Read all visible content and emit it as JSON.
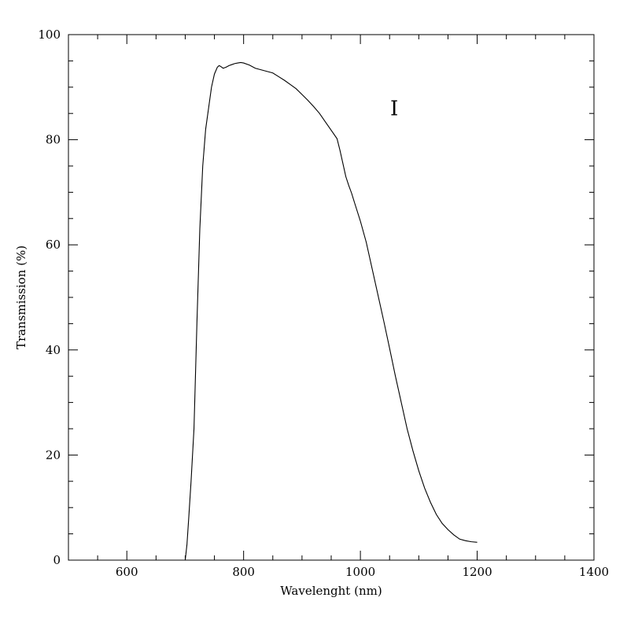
{
  "chart_data": {
    "type": "line",
    "title": "",
    "xlabel": "Wavelenght (nm)",
    "ylabel": "Transmission (%)",
    "xlim": [
      500,
      1400
    ],
    "ylim": [
      0,
      100
    ],
    "x_ticks": [
      600,
      800,
      1000,
      1200,
      1400
    ],
    "y_ticks": [
      0,
      20,
      40,
      60,
      80,
      100
    ],
    "x_tick_labels": [
      "600",
      "800",
      "1000",
      "1200",
      "1400"
    ],
    "y_tick_labels": [
      "0",
      "20",
      "40",
      "60",
      "80",
      "100"
    ],
    "x_minor_step": 50,
    "y_minor_step": 5,
    "grid": false,
    "annotations": [
      {
        "text": "I",
        "x": 1058,
        "y": 86
      }
    ],
    "series": [
      {
        "x": [
          700,
          703,
          706,
          710,
          715,
          720,
          725,
          730,
          735,
          740,
          745,
          750,
          755,
          758,
          760,
          765,
          770,
          775,
          780,
          785,
          790,
          795,
          800,
          810,
          820,
          830,
          840,
          850,
          860,
          870,
          880,
          890,
          900,
          910,
          920,
          930,
          940,
          950,
          960,
          965,
          970,
          975,
          980,
          985,
          990,
          1000,
          1010,
          1020,
          1030,
          1040,
          1050,
          1060,
          1070,
          1080,
          1090,
          1100,
          1110,
          1120,
          1130,
          1140,
          1150,
          1160,
          1170,
          1180,
          1190,
          1200
        ],
        "y": [
          0,
          3,
          8,
          15,
          25,
          45,
          63,
          75,
          82,
          86,
          90,
          92.5,
          93.8,
          94.1,
          94.0,
          93.6,
          93.8,
          94.1,
          94.3,
          94.5,
          94.6,
          94.7,
          94.6,
          94.2,
          93.6,
          93.3,
          93.0,
          92.7,
          92.0,
          91.3,
          90.5,
          89.7,
          88.6,
          87.5,
          86.3,
          85.0,
          83.4,
          81.8,
          80.2,
          78.0,
          75.5,
          73.0,
          71.3,
          69.8,
          68.0,
          64.5,
          60.5,
          55.5,
          50.5,
          45.5,
          40.3,
          35.0,
          30.0,
          25.0,
          20.8,
          17.0,
          13.7,
          11.0,
          8.7,
          7.0,
          5.8,
          4.8,
          4.0,
          3.7,
          3.5,
          3.4
        ]
      }
    ]
  }
}
